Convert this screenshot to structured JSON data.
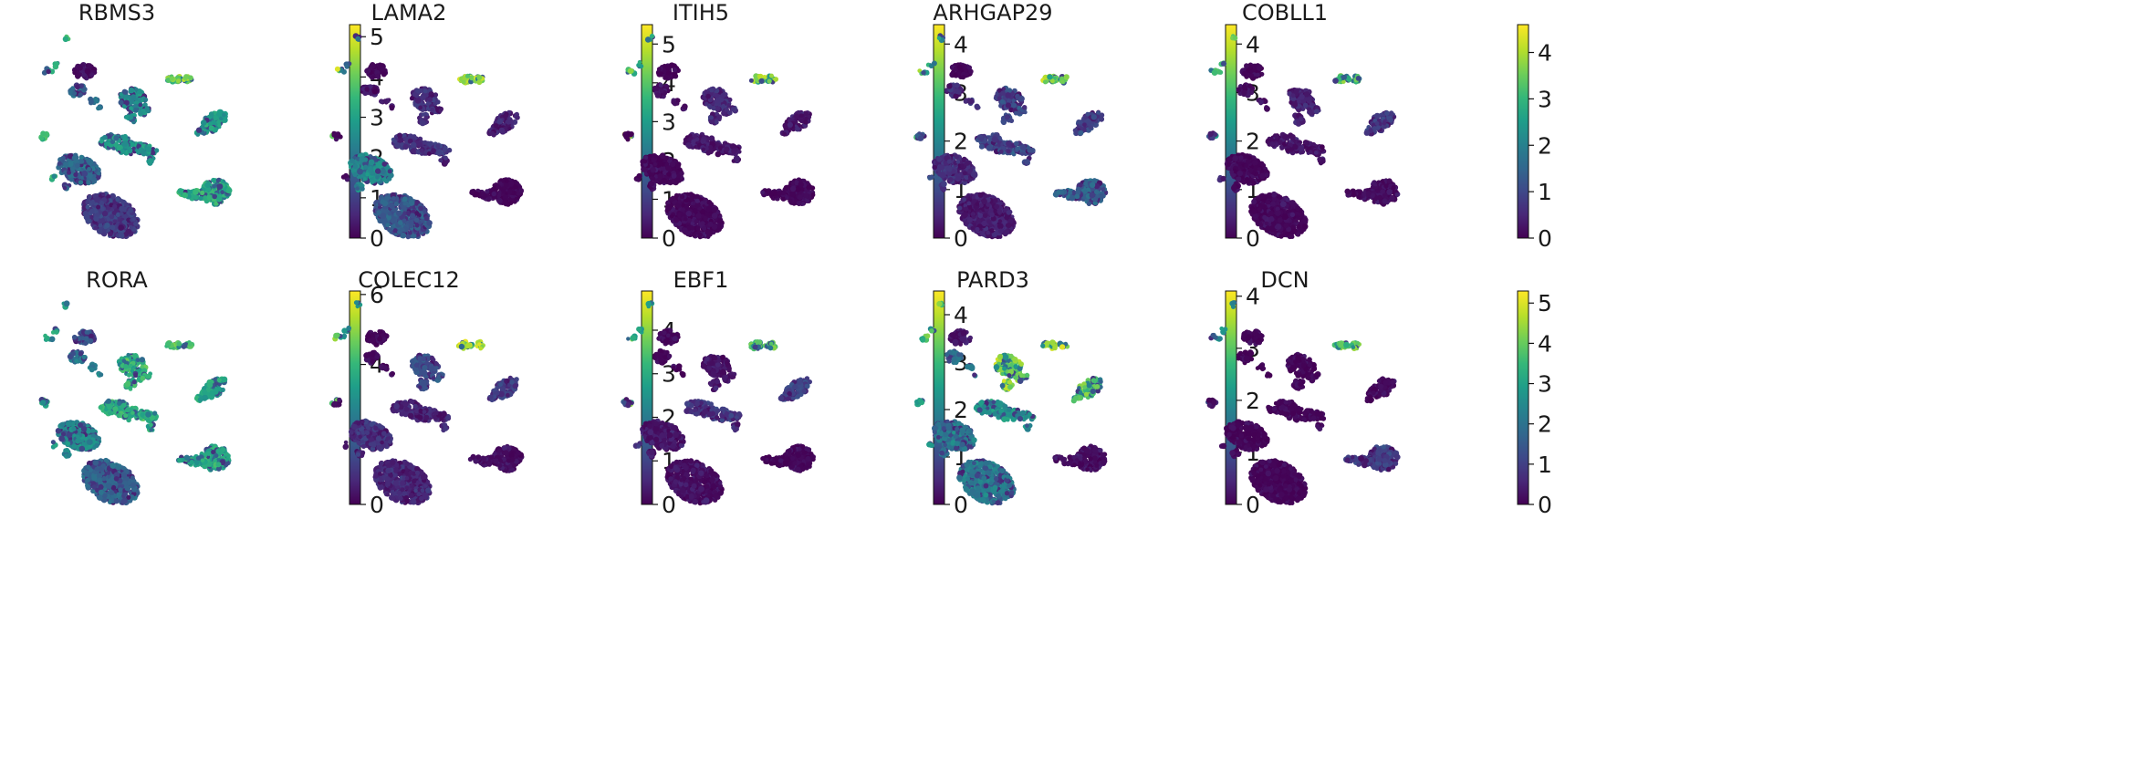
{
  "chart_data": {
    "type": "scatter",
    "description_kind": "UMAP gene expression feature plots",
    "colormap": [
      "#440154",
      "#482878",
      "#3e4989",
      "#31688e",
      "#26828e",
      "#1f9e89",
      "#35b779",
      "#6ece58",
      "#b5de2b",
      "#fde725"
    ],
    "panels": [
      {
        "gene": "RBMS3",
        "vmax": 5.3,
        "ticks": [
          0,
          1,
          2,
          3,
          4,
          5
        ],
        "levels": {
          "top_dots": 3.5,
          "top_pair": 1.5,
          "c1": 0.2,
          "c2": 1.8,
          "c3": 2.6,
          "right_pair": 4.2,
          "right_upper": 2.9,
          "left_mid": 3.6,
          "mid": 2.8,
          "big_left": 1.8,
          "big_bottom": 1.0,
          "right_lower": 3.3
        }
      },
      {
        "gene": "LAMA2",
        "vmax": 5.5,
        "ticks": [
          0,
          1,
          2,
          3,
          4,
          5
        ],
        "levels": {
          "top_dots": 2.0,
          "top_pair": 4.5,
          "c1": 0.1,
          "c2": 0.3,
          "c3": 0.8,
          "right_pair": 4.8,
          "right_upper": 0.6,
          "left_mid": 0.2,
          "mid": 0.9,
          "big_left": 2.6,
          "big_bottom": 1.6,
          "right_lower": 0.1
        }
      },
      {
        "gene": "ITIH5",
        "vmax": 4.4,
        "ticks": [
          0,
          1,
          2,
          3,
          4
        ],
        "levels": {
          "top_dots": 2.5,
          "top_pair": 3.6,
          "c1": 0.1,
          "c2": 0.2,
          "c3": 0.6,
          "right_pair": 3.8,
          "right_upper": 0.3,
          "left_mid": 0.1,
          "mid": 0.3,
          "big_left": 0.1,
          "big_bottom": 0.1,
          "right_lower": 0.1
        }
      },
      {
        "gene": "ARHGAP29",
        "vmax": 4.4,
        "ticks": [
          0,
          1,
          2,
          3,
          4
        ],
        "levels": {
          "top_dots": 2.4,
          "top_pair": 3.5,
          "c1": 0.1,
          "c2": 0.6,
          "c3": 1.0,
          "right_pair": 3.6,
          "right_upper": 0.9,
          "left_mid": 1.2,
          "mid": 1.0,
          "big_left": 0.6,
          "big_bottom": 0.4,
          "right_lower": 1.4
        }
      },
      {
        "gene": "COBLL1",
        "vmax": 4.6,
        "ticks": [
          0,
          1,
          2,
          3,
          4
        ],
        "levels": {
          "top_dots": 3.3,
          "top_pair": 2.8,
          "c1": 0.1,
          "c2": 0.2,
          "c3": 0.5,
          "right_pair": 3.2,
          "right_upper": 0.8,
          "left_mid": 0.5,
          "mid": 0.3,
          "big_left": 0.1,
          "big_bottom": 0.1,
          "right_lower": 0.2
        }
      },
      {
        "gene": "RORA",
        "vmax": 6.1,
        "ticks": [
          0,
          2,
          4,
          6
        ],
        "levels": {
          "top_dots": 3.6,
          "top_pair": 3.8,
          "c1": 1.6,
          "c2": 2.6,
          "c3": 4.0,
          "right_pair": 4.3,
          "right_upper": 3.6,
          "left_mid": 3.4,
          "mid": 3.8,
          "big_left": 2.9,
          "big_bottom": 2.0,
          "right_lower": 3.6
        }
      },
      {
        "gene": "COLEC12",
        "vmax": 4.9,
        "ticks": [
          0,
          1,
          2,
          3,
          4
        ],
        "levels": {
          "top_dots": 2.5,
          "top_pair": 3.8,
          "c1": 0.1,
          "c2": 0.2,
          "c3": 1.2,
          "right_pair": 4.3,
          "right_upper": 0.9,
          "left_mid": 0.2,
          "mid": 0.6,
          "big_left": 0.8,
          "big_bottom": 0.6,
          "right_lower": 0.2
        }
      },
      {
        "gene": "EBF1",
        "vmax": 4.5,
        "ticks": [
          0,
          1,
          2,
          3,
          4
        ],
        "levels": {
          "top_dots": 2.5,
          "top_pair": 3.0,
          "c1": 0.1,
          "c2": 0.1,
          "c3": 0.3,
          "right_pair": 3.3,
          "right_upper": 1.0,
          "left_mid": 0.8,
          "mid": 0.8,
          "big_left": 0.3,
          "big_bottom": 0.2,
          "right_lower": 0.1
        }
      },
      {
        "gene": "PARD3",
        "vmax": 4.1,
        "ticks": [
          0,
          1,
          2,
          3,
          4
        ],
        "levels": {
          "top_dots": 3.2,
          "top_pair": 2.4,
          "c1": 0.3,
          "c2": 1.5,
          "c3": 3.3,
          "right_pair": 3.4,
          "right_upper": 3.0,
          "left_mid": 2.3,
          "mid": 2.1,
          "big_left": 1.6,
          "big_bottom": 1.7,
          "right_lower": 0.2
        }
      },
      {
        "gene": "DCN",
        "vmax": 5.3,
        "ticks": [
          0,
          1,
          2,
          3,
          4,
          5
        ],
        "levels": {
          "top_dots": 2.5,
          "top_pair": 1.5,
          "c1": 0.1,
          "c2": 0.1,
          "c3": 0.1,
          "right_pair": 4.0,
          "right_upper": 0.2,
          "left_mid": 0.2,
          "mid": 0.1,
          "big_left": 0.1,
          "big_bottom": 0.1,
          "right_lower": 1.0
        }
      }
    ]
  }
}
